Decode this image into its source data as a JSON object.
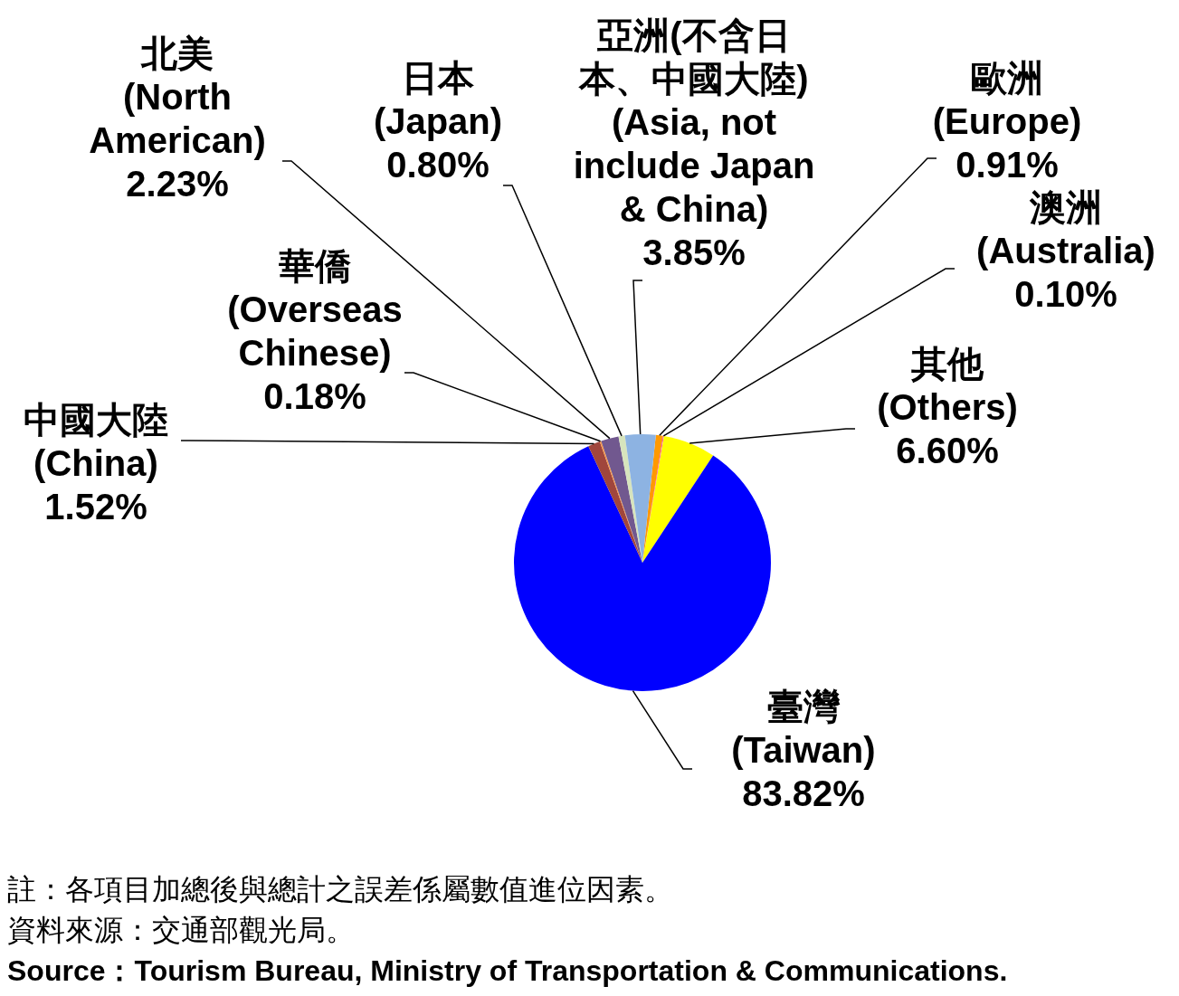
{
  "chart_data": {
    "type": "pie",
    "categories": [
      "歐洲 (Europe)",
      "澳洲 (Australia)",
      "其他 (Others)",
      "臺灣 (Taiwan)",
      "中國大陸 (China)",
      "華僑 (Overseas Chinese)",
      "北美 (North American)",
      "日本 (Japan)",
      "亞洲(不含日本、中國大陸) (Asia, not include Japan & China)"
    ],
    "values": [
      0.91,
      0.1,
      6.6,
      83.82,
      1.52,
      0.18,
      2.23,
      0.8,
      3.85
    ],
    "value_labels": [
      "0.91%",
      "0.10%",
      "6.60%",
      "83.82%",
      "1.52%",
      "0.18%",
      "2.23%",
      "0.80%",
      "3.85%"
    ],
    "colors": [
      "#ff9900",
      "#ff33cc",
      "#ffff00",
      "#0000ff",
      "#a0463c",
      "#f79646",
      "#71588f",
      "#d7e4bd",
      "#8db3e2"
    ],
    "annotations": [
      "註：各項目加總後與總計之誤差係屬數值進位因素。",
      "資料來源：交通部觀光局。",
      "Source：Tourism Bureau, Ministry of Transportation & Communications."
    ]
  }
}
